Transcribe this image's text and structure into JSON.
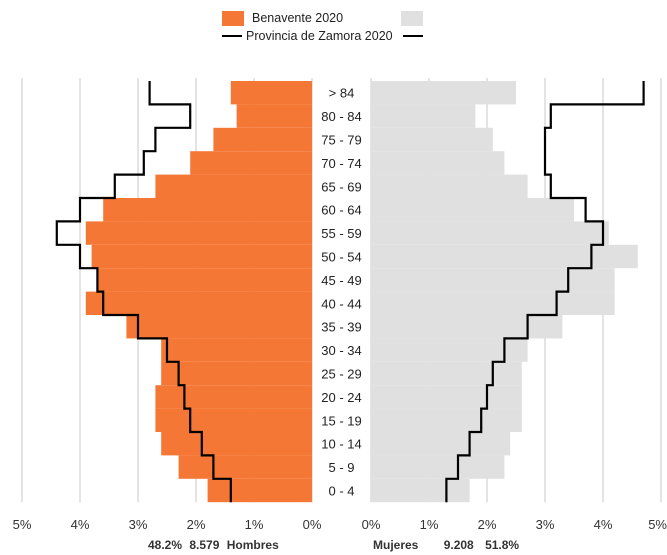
{
  "legend": {
    "local_label": "Benavente 2020",
    "province_label": "Provincia de Zamora 2020"
  },
  "colors": {
    "men_local": "#f47735",
    "women_local": "#e0e0e0",
    "province_line": "#000000",
    "grid": "#c8c8c8"
  },
  "summary": {
    "men_pct": "48.2%",
    "men_count": "8.579",
    "men_label": "Hombres",
    "women_label": "Mujeres",
    "women_count": "9.208",
    "women_pct": "51.8%"
  },
  "chart_data": {
    "type": "bar",
    "orientation": "horizontal population pyramid",
    "title": "",
    "categories": [
      "0 - 4",
      "5 - 9",
      "10 - 14",
      "15 - 19",
      "20 - 24",
      "25 - 29",
      "30 - 34",
      "35 - 39",
      "40 - 44",
      "45 - 49",
      "50 - 54",
      "55 - 59",
      "60 - 64",
      "65 - 69",
      "70 - 74",
      "75 - 79",
      "80 - 84",
      "> 84"
    ],
    "x_ticks": [
      "5%",
      "4%",
      "3%",
      "2%",
      "1%",
      "0%",
      "0%",
      "1%",
      "2%",
      "3%",
      "4%",
      "5%"
    ],
    "xlim": [
      0,
      5
    ],
    "grid": true,
    "series": [
      {
        "name": "Benavente 2020",
        "side": "men",
        "values": [
          1.8,
          2.3,
          2.6,
          2.7,
          2.7,
          2.6,
          2.6,
          3.2,
          3.9,
          3.7,
          3.8,
          3.9,
          3.6,
          2.7,
          2.1,
          1.7,
          1.3,
          1.4
        ]
      },
      {
        "name": "Benavente 2020",
        "side": "women",
        "values": [
          1.7,
          2.3,
          2.4,
          2.6,
          2.6,
          2.6,
          2.7,
          3.3,
          4.2,
          4.2,
          4.6,
          4.1,
          3.5,
          2.7,
          2.3,
          2.1,
          1.8,
          2.5
        ]
      },
      {
        "name": "Provincia de Zamora 2020",
        "side": "men",
        "values": [
          1.4,
          1.7,
          1.9,
          2.1,
          2.2,
          2.3,
          2.5,
          3.0,
          3.6,
          3.7,
          4.0,
          4.4,
          4.0,
          3.4,
          2.9,
          2.7,
          2.1,
          2.8
        ]
      },
      {
        "name": "Provincia de Zamora 2020",
        "side": "women",
        "values": [
          1.3,
          1.5,
          1.7,
          1.9,
          2.0,
          2.1,
          2.3,
          2.7,
          3.2,
          3.4,
          3.8,
          4.0,
          3.7,
          3.1,
          3.0,
          3.0,
          3.1,
          4.7
        ]
      }
    ]
  }
}
